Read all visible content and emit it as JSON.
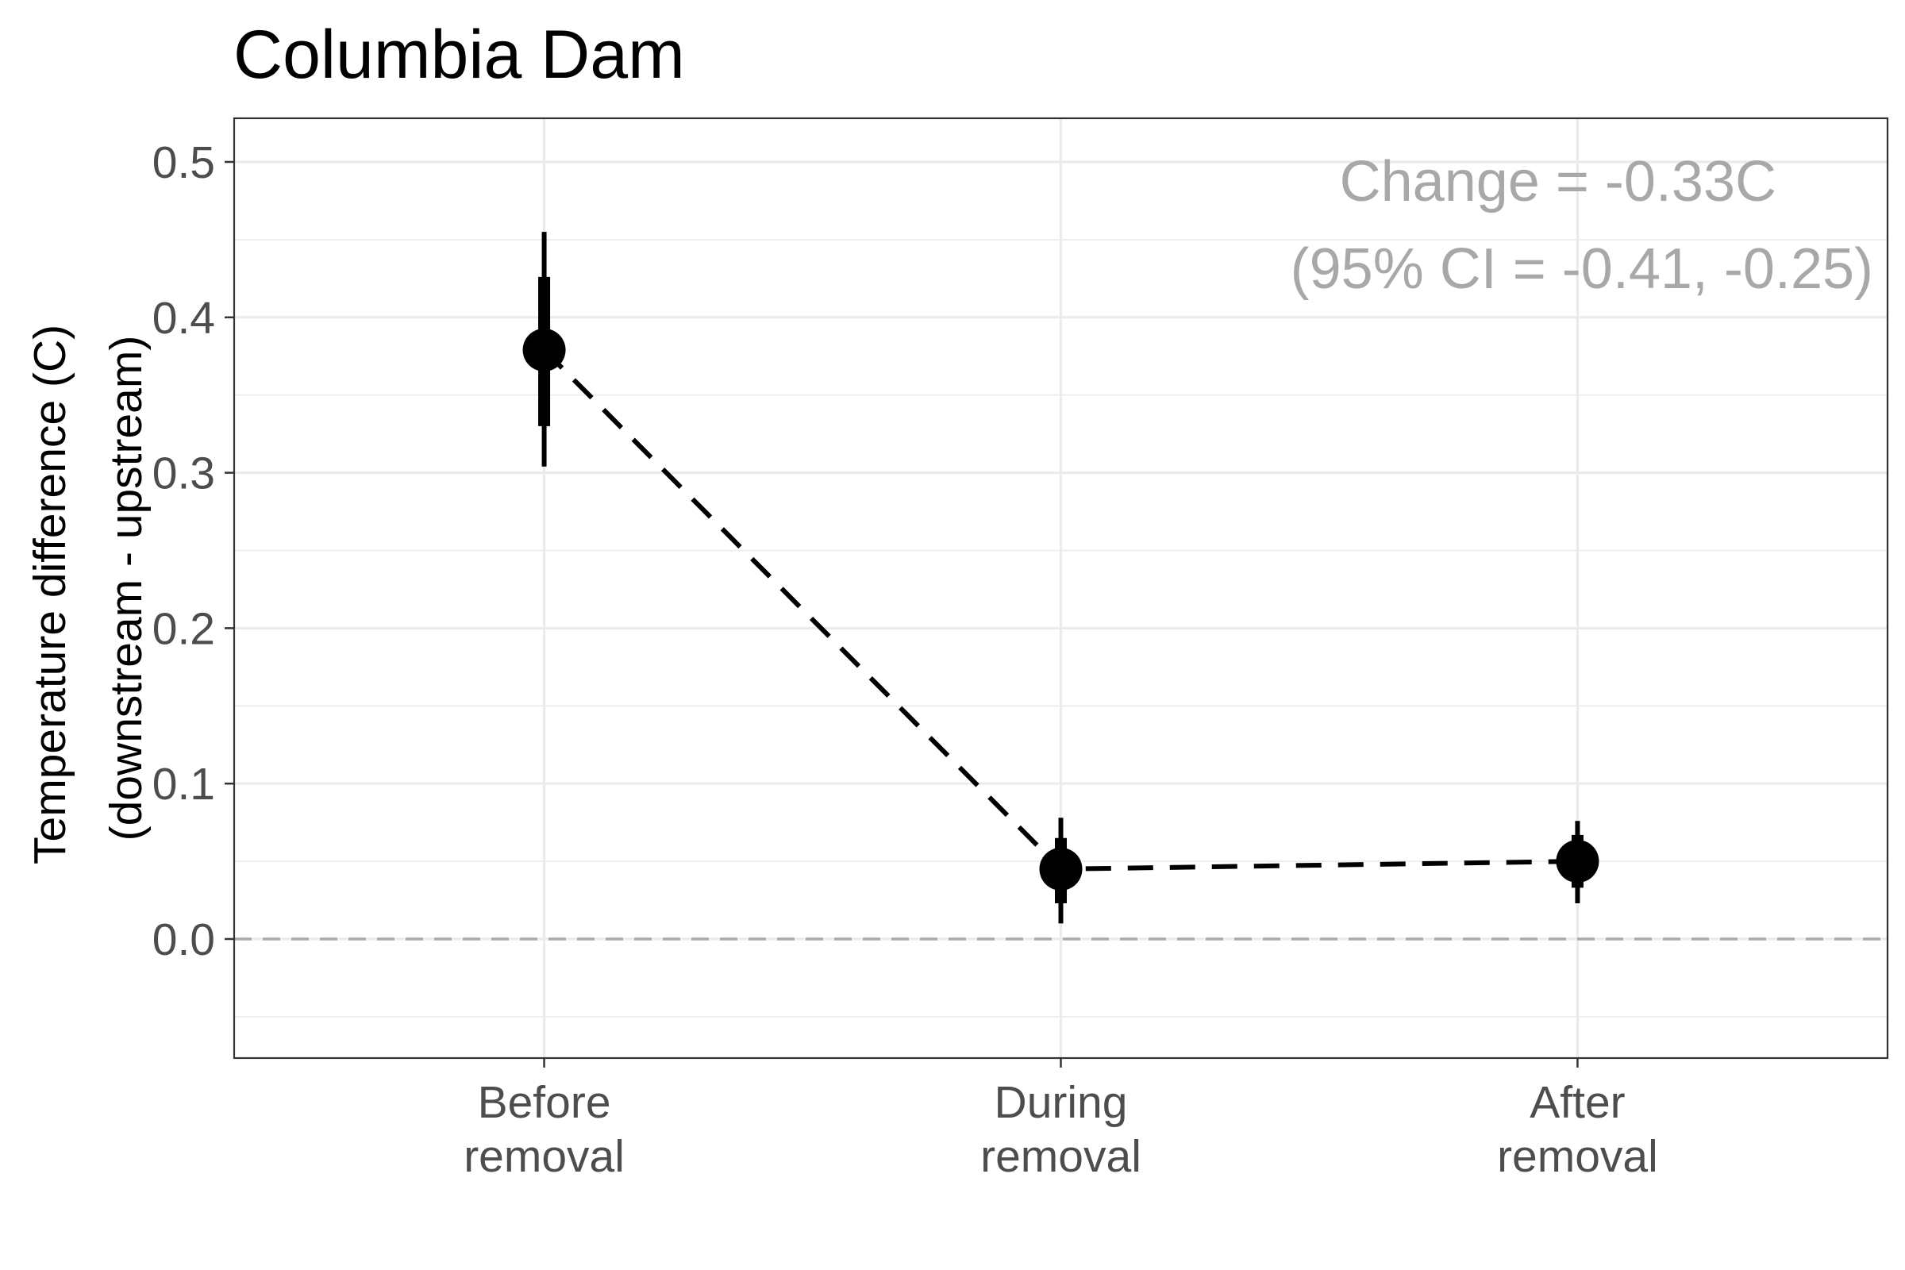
{
  "chart_data": {
    "type": "scatter",
    "title": "Columbia Dam",
    "xlabel": "",
    "ylabel": [
      "Temperature difference (C)",
      "(downstream - upstream)"
    ],
    "categories": [
      [
        "Before",
        "removal"
      ],
      [
        "During",
        "removal"
      ],
      [
        "After",
        "removal"
      ]
    ],
    "points": [
      {
        "category": "Before removal",
        "estimate": 0.379,
        "inner": [
          0.33,
          0.426
        ],
        "outer": [
          0.304,
          0.455
        ]
      },
      {
        "category": "During removal",
        "estimate": 0.045,
        "inner": [
          0.023,
          0.065
        ],
        "outer": [
          0.01,
          0.078
        ]
      },
      {
        "category": "After removal",
        "estimate": 0.05,
        "inner": [
          0.033,
          0.067
        ],
        "outer": [
          0.023,
          0.076
        ]
      }
    ],
    "yticks": [
      0.0,
      0.1,
      0.2,
      0.3,
      0.4,
      0.5
    ],
    "ytick_labels": [
      "0.0",
      "0.1",
      "0.2",
      "0.3",
      "0.4",
      "0.5"
    ],
    "ylim": [
      -0.076,
      0.529
    ],
    "reference_line": {
      "y": 0,
      "style": "dashed",
      "color": "#aaaaaa"
    },
    "connector": {
      "style": "dashed",
      "color": "#000000"
    },
    "annotation": [
      "Change = -0.33C",
      "(95% CI = -0.41, -0.25)"
    ],
    "grid": true,
    "colors": {
      "points": "#000000",
      "grid": "#ebebeb",
      "annotation": "#a8a8a8",
      "ticks": "#4d4d4d",
      "reference": "#aaaaaa",
      "panel_border": "#333333"
    }
  }
}
